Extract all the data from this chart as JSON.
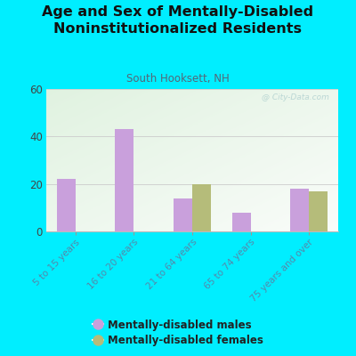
{
  "title": "Age and Sex of Mentally-Disabled\nNoninstitutionalized Residents",
  "subtitle": "South Hooksett, NH",
  "categories": [
    "5 to 15 years",
    "16 to 20 years",
    "21 to 64 years",
    "65 to 74 years",
    "75 years and over"
  ],
  "males": [
    22,
    43,
    14,
    8,
    18
  ],
  "females": [
    0,
    0,
    20,
    0,
    17
  ],
  "male_color": "#c9a0dc",
  "female_color": "#b5bc7a",
  "ylim": [
    0,
    60
  ],
  "yticks": [
    0,
    20,
    40,
    60
  ],
  "background_outer": "#00eeff",
  "watermark": "@ City-Data.com",
  "legend_male": "Mentally-disabled males",
  "legend_female": "Mentally-disabled females",
  "bar_width": 0.32,
  "plot_bg_colors": [
    "#ddeedd",
    "#eef5ee",
    "#f5f5e8",
    "#f8f8f0"
  ],
  "title_fontsize": 11.5,
  "subtitle_fontsize": 8.5,
  "tick_label_color": "#5588aa",
  "ytick_color": "#444444"
}
